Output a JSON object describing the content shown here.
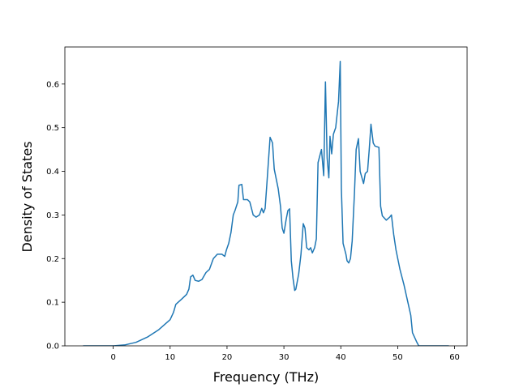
{
  "chart_data": {
    "type": "line",
    "x_label": "Frequency (THz)",
    "y_label": "Density of States",
    "xlim": [
      -8.5,
      62.2
    ],
    "ylim": [
      0,
      0.685
    ],
    "xticks": [
      0,
      10,
      20,
      30,
      40,
      50,
      60
    ],
    "yticks": [
      {
        "value": 0,
        "label": "0.0"
      },
      0.1,
      0.2,
      0.3,
      0.4,
      0.5,
      0.6
    ],
    "series": [
      {
        "color": "#1f77b4",
        "x": [
          -5.3,
          0,
          2,
          4,
          6,
          8,
          10,
          10.6,
          11.0,
          12.1,
          12.9,
          13.3,
          13.6,
          14.0,
          14.4,
          15.0,
          15.6,
          16.3,
          16.9,
          17.6,
          18.3,
          19.1,
          19.6,
          19.9,
          20.3,
          20.7,
          21.1,
          21.4,
          21.9,
          22.1,
          22.6,
          22.9,
          23.6,
          24.0,
          24.6,
          25.1,
          25.7,
          26.1,
          26.4,
          26.7,
          27.0,
          27.57,
          28.0,
          28.3,
          29.0,
          29.4,
          29.7,
          30.0,
          30.4,
          30.7,
          31.0,
          31.3,
          31.6,
          31.9,
          32.1,
          32.6,
          33.0,
          33.4,
          33.7,
          34.0,
          34.4,
          34.7,
          35.0,
          35.4,
          35.7,
          36.0,
          36.6,
          37.0,
          37.3,
          37.6,
          37.9,
          38.1,
          38.4,
          38.7,
          39.1,
          39.6,
          39.9,
          40.1,
          40.4,
          40.9,
          41.1,
          41.4,
          41.7,
          42.0,
          42.4,
          42.7,
          43.1,
          43.4,
          44.0,
          44.3,
          44.7,
          45.0,
          45.3,
          45.7,
          46.0,
          46.7,
          47.0,
          47.3,
          48.0,
          48.6,
          48.9,
          49.3,
          49.7,
          50.4,
          51.1,
          51.7,
          52.3,
          52.6,
          53.3,
          53.7,
          59.0
        ],
        "values": [
          0,
          0,
          0.002,
          0.008,
          0.02,
          0.037,
          0.06,
          0.077,
          0.095,
          0.108,
          0.118,
          0.13,
          0.158,
          0.162,
          0.15,
          0.148,
          0.152,
          0.168,
          0.175,
          0.2,
          0.21,
          0.21,
          0.205,
          0.22,
          0.235,
          0.26,
          0.3,
          0.31,
          0.33,
          0.368,
          0.37,
          0.335,
          0.335,
          0.33,
          0.3,
          0.295,
          0.3,
          0.315,
          0.305,
          0.315,
          0.37,
          0.478,
          0.465,
          0.405,
          0.36,
          0.32,
          0.27,
          0.258,
          0.29,
          0.31,
          0.314,
          0.195,
          0.155,
          0.127,
          0.13,
          0.165,
          0.21,
          0.28,
          0.27,
          0.225,
          0.22,
          0.225,
          0.213,
          0.225,
          0.245,
          0.42,
          0.45,
          0.39,
          0.605,
          0.43,
          0.385,
          0.48,
          0.44,
          0.485,
          0.5,
          0.56,
          0.652,
          0.36,
          0.235,
          0.21,
          0.195,
          0.19,
          0.2,
          0.24,
          0.35,
          0.45,
          0.475,
          0.4,
          0.372,
          0.395,
          0.4,
          0.45,
          0.508,
          0.465,
          0.458,
          0.455,
          0.32,
          0.298,
          0.288,
          0.295,
          0.3,
          0.255,
          0.22,
          0.175,
          0.14,
          0.105,
          0.07,
          0.03,
          0.01,
          0,
          0
        ]
      }
    ]
  }
}
